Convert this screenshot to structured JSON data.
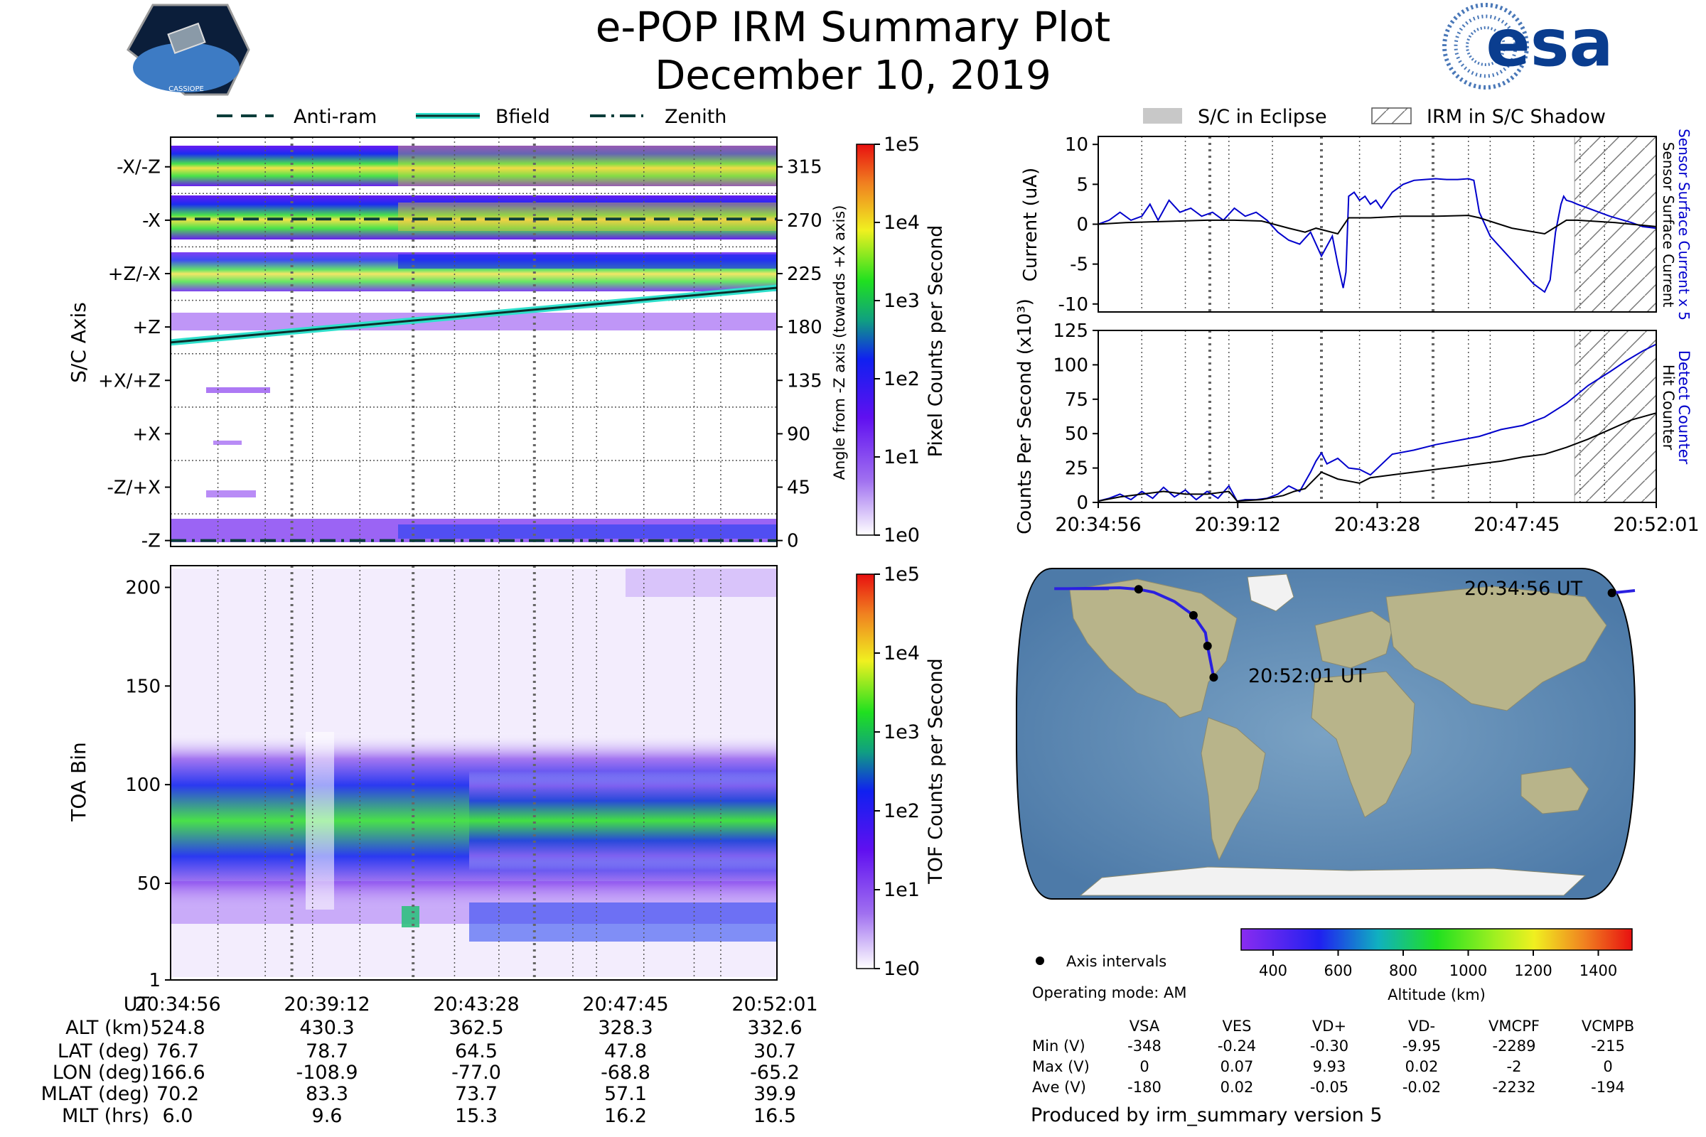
{
  "header": {
    "title": "e-POP IRM Summary Plot",
    "date": "December 10, 2019",
    "logo_left_text": "CASSIOPE",
    "logo_right_text": "esa"
  },
  "legend_top_left": {
    "items": [
      "Anti-ram",
      "Bfield",
      "Zenith"
    ]
  },
  "legend_top_right": {
    "items": [
      "S/C in Eclipse",
      "IRM in S/C Shadow"
    ]
  },
  "colors": {
    "antiram": "#0b3d3a",
    "bfield_line": "#0b2f2b",
    "bfield_halo": "#2fe0cc",
    "current_sensor": "#0000cc",
    "hit": "#000000",
    "eclipse": "#c8c8c8"
  },
  "chart_data": [
    {
      "id": "sc-axis-panel",
      "type": "heatmap",
      "ylabel": "S/C Axis",
      "ylabel_right": "Angle from -Z axis (towards +X axis)",
      "yticks_left": [
        "-X/-Z",
        "-X",
        "+Z/-X",
        "+Z",
        "+X/+Z",
        "+X",
        "-Z/+X",
        "-Z"
      ],
      "yticks_right": [
        "315",
        "270",
        "225",
        "180",
        "135",
        "90",
        "45",
        "0"
      ],
      "ylim": [
        -5,
        340
      ],
      "xlim": [
        0,
        1025
      ],
      "bfield_angle": {
        "x": [
          0,
          1025
        ],
        "y": [
          167,
          213
        ]
      },
      "antiram_angle": 271,
      "zenith_angle": 0,
      "colorbar": {
        "label": "Pixel Counts per Second",
        "ticks": [
          "1e5",
          "1e4",
          "1e3",
          "1e2",
          "1e1",
          "1e0"
        ]
      }
    },
    {
      "id": "toa-panel",
      "type": "heatmap",
      "ylabel": "TOA Bin",
      "yticks": [
        "1",
        "50",
        "100",
        "150",
        "200"
      ],
      "ylim": [
        1,
        211
      ],
      "colorbar": {
        "label": "TOF Counts per Second",
        "ticks": [
          "1e5",
          "1e4",
          "1e3",
          "1e2",
          "1e1",
          "1e0"
        ]
      }
    },
    {
      "id": "current-panel",
      "type": "line",
      "ylabel": "Current (uA)",
      "ylabel_right_sensor": "Sensor Surface Current x 5",
      "ylabel_right_surface": "Sensor Surface Current",
      "yticks": [
        "10",
        "5",
        "0",
        "-5",
        "-10"
      ],
      "ylim": [
        -11,
        11
      ],
      "xlim": [
        0,
        1025
      ],
      "eclipse_span": [
        0,
        0
      ],
      "shadow_span": [
        875,
        1025
      ],
      "series": [
        {
          "name": "Sensor Surface Current x 5",
          "x": [
            0,
            20,
            40,
            60,
            80,
            95,
            110,
            130,
            150,
            170,
            190,
            210,
            230,
            250,
            270,
            290,
            310,
            330,
            350,
            370,
            390,
            410,
            430,
            440,
            450,
            455,
            460,
            470,
            480,
            490,
            500,
            510,
            520,
            540,
            560,
            580,
            600,
            620,
            640,
            660,
            680,
            690,
            700,
            720,
            740,
            760,
            780,
            800,
            820,
            830,
            840,
            850,
            855,
            860,
            870,
            880,
            900,
            920,
            940,
            960,
            980,
            1000,
            1025
          ],
          "y": [
            0,
            0.5,
            1.5,
            0.5,
            1.0,
            2.5,
            0.5,
            3.0,
            1.5,
            2.0,
            1.0,
            1.5,
            0.5,
            2.0,
            1.0,
            1.5,
            0.5,
            -1.0,
            -2.0,
            -2.5,
            -1.0,
            -4.0,
            -1.5,
            -5.0,
            -8.0,
            -6.0,
            3.5,
            4.0,
            3.0,
            3.5,
            2.5,
            3.0,
            2.0,
            4.0,
            5.0,
            5.5,
            5.6,
            5.7,
            5.6,
            5.6,
            5.7,
            5.5,
            1.5,
            -1.5,
            -3.0,
            -4.5,
            -6.0,
            -7.5,
            -8.5,
            -7.0,
            -1.0,
            2.5,
            3.5,
            3.0,
            2.8,
            2.5,
            2.0,
            1.5,
            1.0,
            0.6,
            0.2,
            -0.3,
            -0.5
          ]
        },
        {
          "name": "Sensor Surface Current",
          "x": [
            0,
            50,
            100,
            150,
            200,
            250,
            300,
            350,
            380,
            400,
            440,
            460,
            500,
            560,
            620,
            680,
            700,
            760,
            820,
            860,
            880,
            950,
            1025
          ],
          "y": [
            0,
            0.2,
            0.3,
            0.4,
            0.5,
            0.5,
            0.4,
            -0.5,
            -1.0,
            -0.5,
            -1.2,
            0.8,
            0.8,
            1.0,
            1.0,
            1.1,
            0.8,
            -0.5,
            -1.2,
            0.5,
            0.5,
            0.2,
            -0.3
          ]
        }
      ]
    },
    {
      "id": "counts-panel",
      "type": "line",
      "ylabel": "Counts Per Second (x10³)",
      "ylabel_right_detect": "Detect Counter",
      "ylabel_right_hit": "Hit Counter",
      "yticks": [
        "125",
        "100",
        "75",
        "50",
        "25",
        "0"
      ],
      "ylim": [
        0,
        125
      ],
      "xlim": [
        0,
        1025
      ],
      "xticks": [
        "20:34:56",
        "20:39:12",
        "20:43:28",
        "20:47:45",
        "20:52:01"
      ],
      "shadow_span": [
        875,
        1025
      ],
      "series": [
        {
          "name": "Detect Counter",
          "x": [
            0,
            20,
            40,
            60,
            80,
            100,
            120,
            140,
            160,
            180,
            200,
            220,
            240,
            255,
            270,
            290,
            310,
            330,
            350,
            370,
            380,
            390,
            400,
            410,
            420,
            440,
            460,
            480,
            500,
            540,
            580,
            620,
            660,
            700,
            740,
            780,
            820,
            860,
            900,
            940,
            970,
            1000,
            1025
          ],
          "y": [
            1,
            3,
            6,
            2,
            8,
            3,
            11,
            4,
            9,
            2,
            8,
            3,
            12,
            1,
            2,
            2,
            3,
            6,
            12,
            8,
            15,
            22,
            30,
            36,
            28,
            32,
            25,
            24,
            20,
            35,
            38,
            42,
            45,
            48,
            53,
            56,
            62,
            72,
            85,
            95,
            103,
            110,
            115
          ]
        },
        {
          "name": "Hit Counter",
          "x": [
            0,
            40,
            80,
            120,
            160,
            200,
            240,
            255,
            300,
            340,
            360,
            380,
            400,
            410,
            440,
            480,
            500,
            540,
            580,
            620,
            660,
            700,
            740,
            780,
            820,
            860,
            900,
            940,
            980,
            1025
          ],
          "y": [
            1,
            4,
            6,
            8,
            6,
            6,
            8,
            1,
            2,
            5,
            8,
            10,
            18,
            22,
            17,
            14,
            18,
            20,
            22,
            24,
            26,
            28,
            30,
            33,
            35,
            40,
            46,
            53,
            60,
            65
          ]
        }
      ]
    },
    {
      "id": "map-panel",
      "type": "scatter",
      "ground_track": {
        "lon": [
          166.6,
          180,
          -150,
          -120,
          -108.9,
          -100,
          -88,
          -77.0,
          -70,
          -68.8,
          -65.2
        ],
        "lat": [
          76.7,
          78,
          79,
          79.5,
          78.7,
          77,
          72,
          64.5,
          55,
          47.8,
          30.7
        ]
      },
      "axis_interval_points": {
        "lon": [
          166.6,
          -108.9,
          -77.0,
          -68.8,
          -65.2
        ],
        "lat": [
          76.7,
          78.7,
          64.5,
          47.8,
          30.7
        ]
      },
      "start_label": "20:34:56 UT",
      "end_label": "20:52:01 UT",
      "altitude_colorbar": {
        "label": "Altitude (km)",
        "ticks": [
          "400",
          "600",
          "800",
          "1000",
          "1200",
          "1400"
        ]
      }
    }
  ],
  "bottom_table": {
    "row_labels": [
      "UT",
      "ALT (km)",
      "LAT (deg)",
      "LON (deg)",
      "MLAT (deg)",
      "MLT (hrs)"
    ],
    "columns": [
      [
        "20:34:56",
        "524.8",
        "76.7",
        "166.6",
        "70.2",
        "6.0"
      ],
      [
        "20:39:12",
        "430.3",
        "78.7",
        "-108.9",
        "83.3",
        "9.6"
      ],
      [
        "20:43:28",
        "362.5",
        "64.5",
        "-77.0",
        "73.7",
        "15.3"
      ],
      [
        "20:47:45",
        "328.3",
        "47.8",
        "-68.8",
        "57.1",
        "16.2"
      ],
      [
        "20:52:01",
        "332.6",
        "30.7",
        "-65.2",
        "39.9",
        "16.5"
      ]
    ]
  },
  "info": {
    "axis_intervals_label": "Axis intervals",
    "operating_mode": "Operating mode: AM",
    "voltage_headers": [
      "VSA",
      "VES",
      "VD+",
      "VD-",
      "VMCPF",
      "VCMPB"
    ],
    "voltage_rows": [
      {
        "label": "Min (V)",
        "values": [
          "-348",
          "-0.24",
          "-0.30",
          "-9.95",
          "-2289",
          "-215"
        ]
      },
      {
        "label": "Max (V)",
        "values": [
          "0",
          "0.07",
          "9.93",
          "0.02",
          "-2",
          "0"
        ]
      },
      {
        "label": "Ave (V)",
        "values": [
          "-180",
          "0.02",
          "-0.05",
          "-0.02",
          "-2232",
          "-194"
        ]
      }
    ],
    "produced_by": "Produced by irm_summary version 5"
  }
}
